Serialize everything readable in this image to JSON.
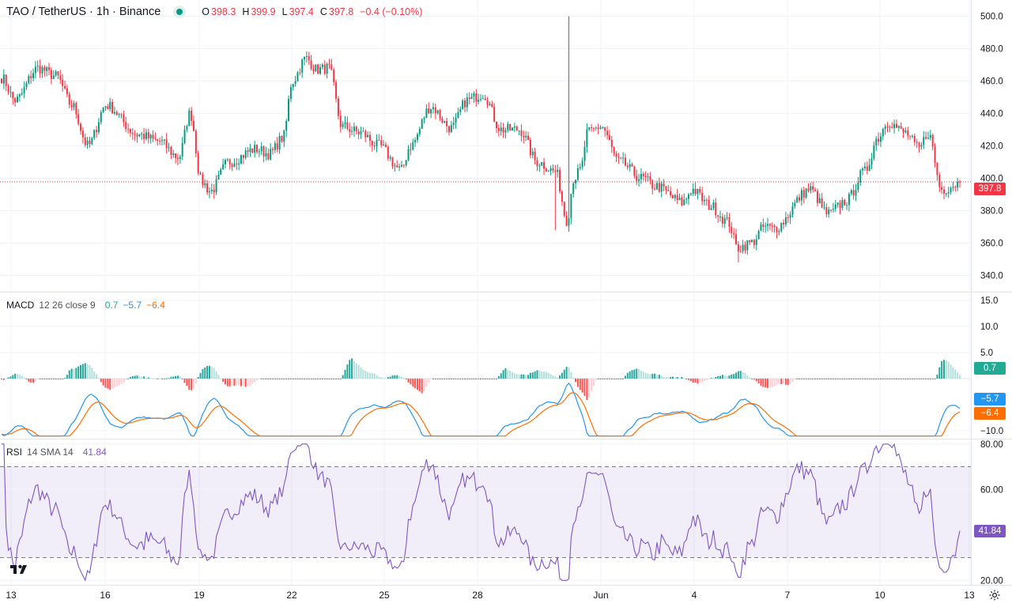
{
  "header": {
    "symbol": "TAO / TetherUS · 1h · Binance",
    "status_color": "#089981",
    "ohlc": {
      "o_label": "O",
      "o": "398.3",
      "h_label": "H",
      "h": "399.9",
      "l_label": "L",
      "l": "397.4",
      "c_label": "C",
      "c": "397.8",
      "change": "−0.4 (−0.10%)"
    }
  },
  "macd_header": {
    "name": "MACD",
    "params": "12 26 close 9",
    "hist": "0.7",
    "macd": "−5.7",
    "signal": "−6.4"
  },
  "rsi_header": {
    "name": "RSI",
    "params": "14 SMA 14",
    "value": "41.84"
  },
  "price_tag": "397.8",
  "macd_tags": {
    "hist": "0.7",
    "macd": "−5.7",
    "signal": "−6.4"
  },
  "rsi_tag": "41.84",
  "colors": {
    "up": "#089981",
    "down": "#f23645",
    "macd": "#2196f3",
    "signal": "#ff6d00",
    "rsi": "#7e57c2",
    "grid": "#f0f3fa"
  },
  "chart_data": [
    {
      "type": "candlestick",
      "title": "TAO / TetherUS · 1h · Binance",
      "ylim": [
        330,
        510
      ],
      "yticks": [
        "500.0",
        "480.0",
        "460.0",
        "440.0",
        "420.0",
        "400.0",
        "380.0",
        "360.0",
        "340.0"
      ],
      "last": 397.8,
      "anchors": [
        [
          0,
          462
        ],
        [
          6,
          448
        ],
        [
          16,
          468
        ],
        [
          24,
          463
        ],
        [
          31,
          445
        ],
        [
          38,
          420
        ],
        [
          46,
          445
        ],
        [
          60,
          427
        ],
        [
          69,
          423
        ],
        [
          78,
          413
        ],
        [
          83,
          440
        ],
        [
          88,
          398
        ],
        [
          92,
          392
        ],
        [
          100,
          410
        ],
        [
          112,
          418
        ],
        [
          118,
          415
        ],
        [
          124,
          425
        ],
        [
          128,
          460
        ],
        [
          134,
          474
        ],
        [
          139,
          467
        ],
        [
          144,
          468
        ],
        [
          150,
          432
        ],
        [
          158,
          428
        ],
        [
          166,
          420
        ],
        [
          176,
          405
        ],
        [
          180,
          420
        ],
        [
          189,
          444
        ],
        [
          198,
          431
        ],
        [
          205,
          448
        ],
        [
          212,
          452
        ],
        [
          220,
          430
        ],
        [
          228,
          430
        ],
        [
          236,
          410
        ],
        [
          244,
          404
        ],
        [
          249,
          374
        ],
        [
          252,
          400
        ],
        [
          255,
          405
        ],
        [
          258,
          428
        ],
        [
          264,
          432
        ],
        [
          272,
          410
        ],
        [
          282,
          400
        ],
        [
          288,
          395
        ],
        [
          300,
          385
        ],
        [
          304,
          393
        ],
        [
          312,
          383
        ],
        [
          320,
          373
        ],
        [
          324,
          357
        ],
        [
          330,
          360
        ],
        [
          336,
          370
        ],
        [
          340,
          369
        ],
        [
          356,
          393
        ],
        [
          364,
          378
        ],
        [
          372,
          386
        ],
        [
          380,
          404
        ],
        [
          386,
          425
        ],
        [
          390,
          435
        ],
        [
          398,
          428
        ],
        [
          404,
          418
        ],
        [
          408,
          428
        ],
        [
          414,
          393
        ],
        [
          422,
          397
        ]
      ],
      "spikes": [
        [
          250,
          500
        ],
        [
          244,
          368
        ],
        [
          324,
          348
        ]
      ]
    },
    {
      "type": "line",
      "title": "MACD 12 26 close 9",
      "series": [
        {
          "name": "MACD",
          "color": "#2196f3"
        },
        {
          "name": "Signal",
          "color": "#ff6d00"
        },
        {
          "name": "Histogram",
          "color": "#089981"
        }
      ],
      "ylim": [
        -11.5,
        16.5
      ],
      "yticks": [
        "15.0",
        "10.0",
        "5.0",
        "−10.0"
      ],
      "values": {
        "macd": -5.7,
        "signal": -6.4,
        "histogram": 0.7
      }
    },
    {
      "type": "line",
      "title": "RSI 14 SMA 14",
      "series": [
        {
          "name": "RSI",
          "color": "#7e57c2"
        }
      ],
      "ylim": [
        18,
        82
      ],
      "yticks": [
        "80.00",
        "60.00",
        "20.00"
      ],
      "bands": [
        30,
        70
      ],
      "value": 41.84
    }
  ],
  "xaxis": {
    "labels": [
      "13",
      "16",
      "19",
      "22",
      "25",
      "28",
      "Jun",
      "4",
      "7",
      "10",
      "13"
    ]
  }
}
